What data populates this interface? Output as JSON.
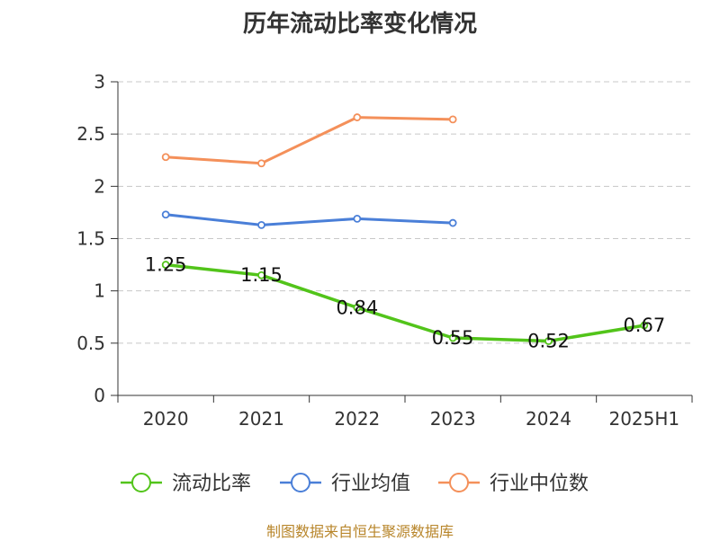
{
  "chart_data": {
    "type": "line",
    "title": "历年流动比率变化情况",
    "categories": [
      "2020",
      "2021",
      "2022",
      "2023",
      "2024",
      "2025H1"
    ],
    "ylim": [
      0,
      3
    ],
    "yticks": [
      "0",
      "0.5",
      "1",
      "1.5",
      "2",
      "2.5",
      "3"
    ],
    "grid": true,
    "legend_position": "bottom",
    "series": [
      {
        "name": "流动比率",
        "color": "#52c41a",
        "values": [
          1.25,
          1.15,
          0.84,
          0.55,
          0.52,
          0.67
        ],
        "labels": [
          "1.25",
          "1.15",
          "0.84",
          "0.55",
          "0.52",
          "0.67"
        ]
      },
      {
        "name": "行业均值",
        "color": "#4a7fd8",
        "values": [
          1.73,
          1.63,
          1.69,
          1.65,
          null,
          null
        ]
      },
      {
        "name": "行业中位数",
        "color": "#f4905a",
        "values": [
          2.28,
          2.22,
          2.66,
          2.64,
          null,
          null
        ]
      }
    ]
  },
  "source": "制图数据来自恒生聚源数据库"
}
